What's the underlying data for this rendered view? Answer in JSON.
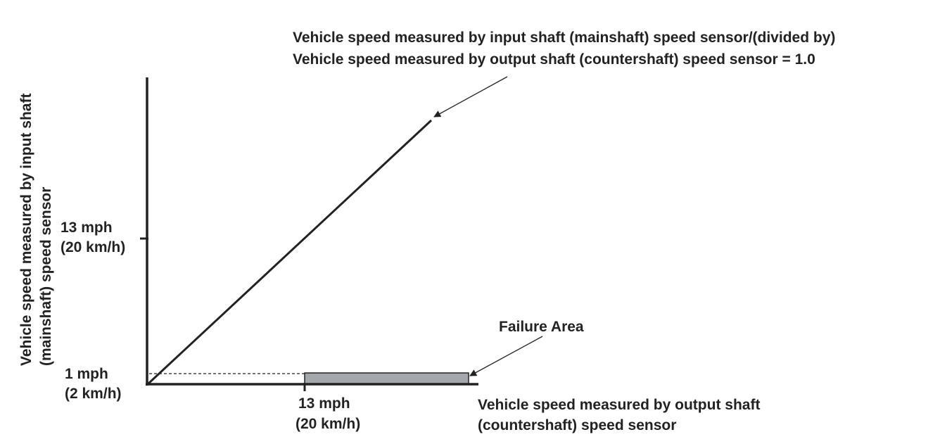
{
  "diagram": {
    "annotation_line1": "Vehicle speed measured by input shaft (mainshaft) speed sensor/(divided by)",
    "annotation_line2": "Vehicle speed measured by output shaft (countershaft) speed sensor = 1.0",
    "y_axis_label_line1": "Vehicle speed measured by input shaft",
    "y_axis_label_line2": "(mainshaft) speed sensor",
    "x_axis_label_line1": "Vehicle speed measured by output shaft",
    "x_axis_label_line2": "(countershaft) speed sensor",
    "y_tick_high_line1": "13 mph",
    "y_tick_high_line2": "(20 km/h)",
    "y_tick_low_line1": "1 mph",
    "y_tick_low_line2": "(2 km/h)",
    "x_tick_line1": "13 mph",
    "x_tick_line2": "(20 km/h)",
    "failure_area_label": "Failure Area",
    "colors": {
      "ink": "#222222",
      "failure_fill": "#a4a8ac"
    }
  }
}
